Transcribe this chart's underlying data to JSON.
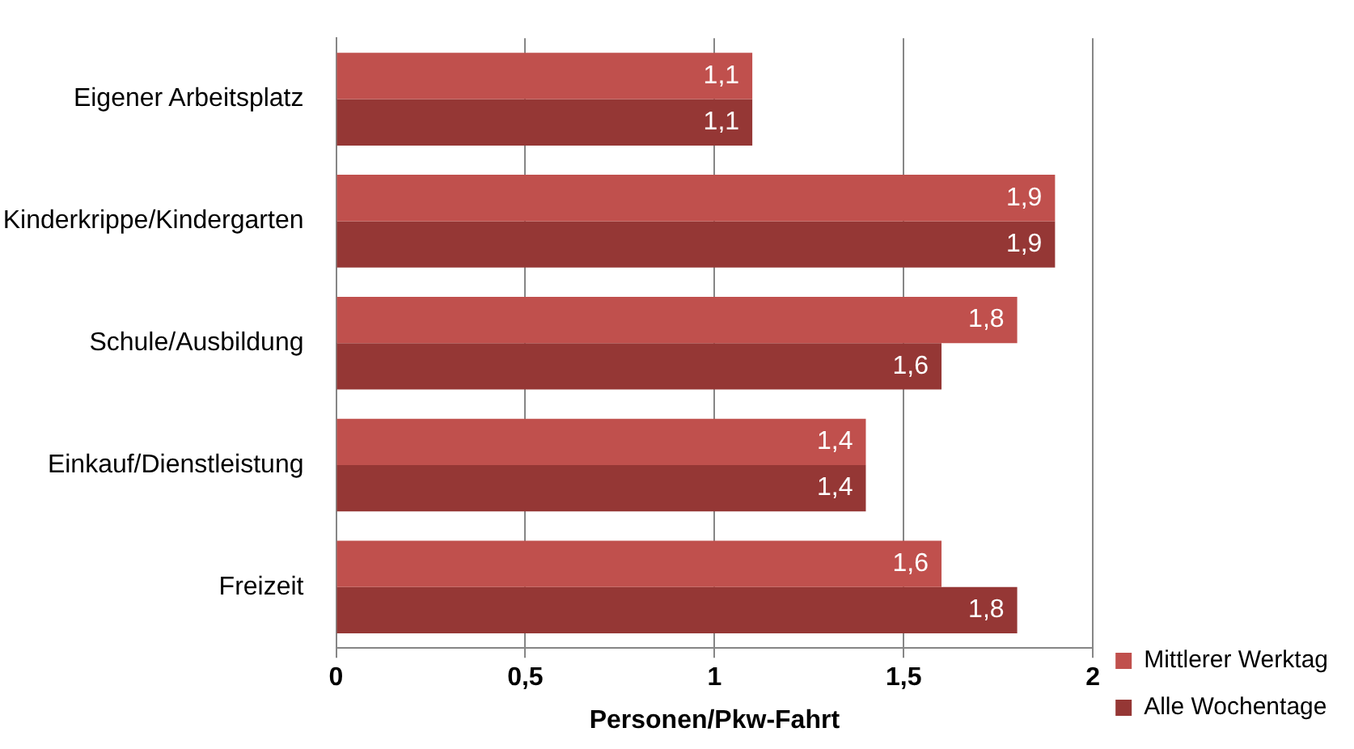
{
  "chart_data": {
    "type": "bar",
    "orientation": "horizontal",
    "xlabel": "Personen/Pkw-Fahrt",
    "categories": [
      "Eigener Arbeitsplatz",
      "Kinderkrippe/Kindergarten",
      "Schule/Ausbildung",
      "Einkauf/Dienstleistung",
      "Freizeit"
    ],
    "series": [
      {
        "name": "Mittlerer Werktag",
        "color": "#c0504d",
        "values": [
          1.1,
          1.9,
          1.8,
          1.4,
          1.6
        ],
        "value_labels": [
          "1,1",
          "1,9",
          "1,8",
          "1,4",
          "1,6"
        ]
      },
      {
        "name": "Alle Wochentage",
        "color": "#953735",
        "values": [
          1.1,
          1.9,
          1.6,
          1.4,
          1.8
        ],
        "value_labels": [
          "1,1",
          "1,9",
          "1,6",
          "1,4",
          "1,8"
        ]
      }
    ],
    "xlim": [
      0,
      2
    ],
    "xticks": [
      0,
      {
        "value": 0.5,
        "label": "0,5"
      },
      1,
      {
        "value": 1.5,
        "label": "1,5"
      },
      2
    ],
    "grid": "x",
    "legend": "bottom right"
  }
}
